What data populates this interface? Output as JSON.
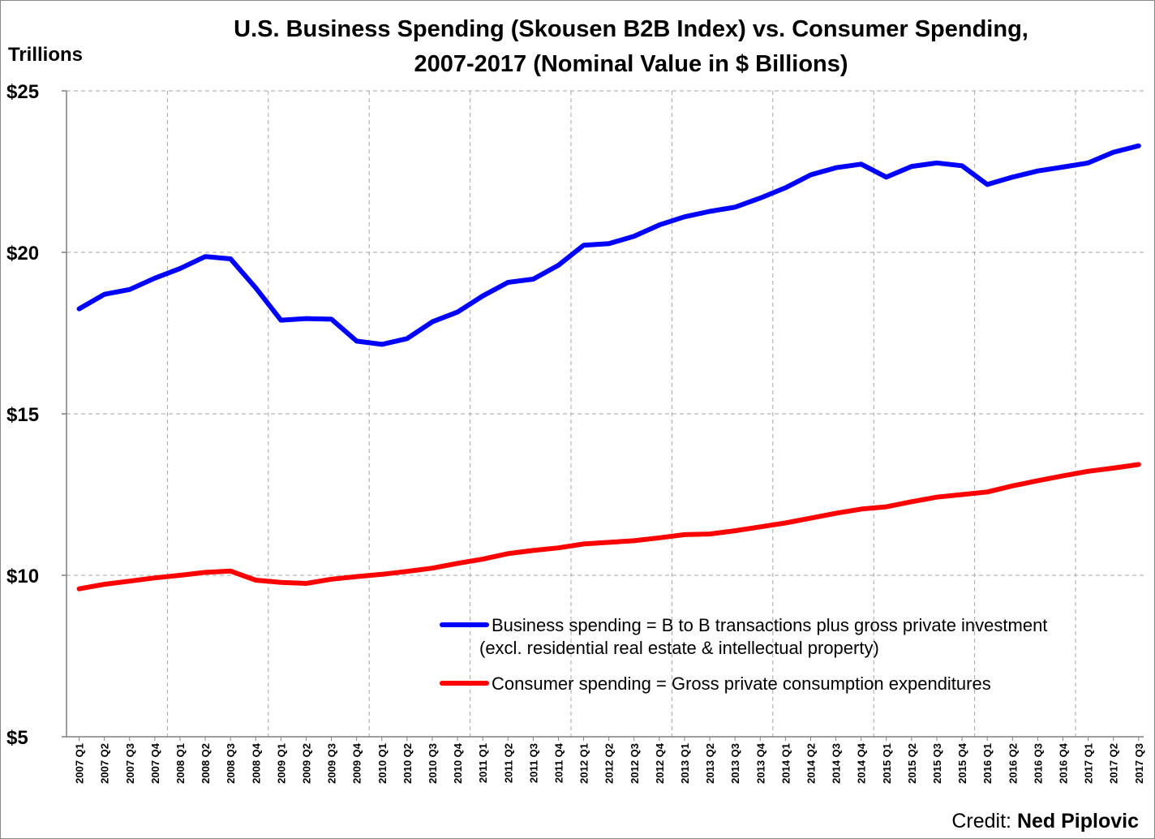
{
  "chart_data": {
    "type": "line",
    "title_line1": "U.S. Business Spending (Skousen B2B Index) vs. Consumer Spending,",
    "title_line2": "2007-2017  (Nominal Value in $ Billions)",
    "ylabel": "Trillions",
    "ylim": [
      5,
      25
    ],
    "yticks": [
      5,
      10,
      15,
      20,
      25
    ],
    "ytick_labels": [
      "$5",
      "$10",
      "$15",
      "$20",
      "$25"
    ],
    "grid": true,
    "legend_position": "bottom-right",
    "categories": [
      "2007 Q1",
      "2007 Q2",
      "2007 Q3",
      "2007 Q4",
      "2008 Q1",
      "2008 Q2",
      "2008 Q3",
      "2008 Q4",
      "2009 Q1",
      "2009 Q2",
      "2009 Q3",
      "2009 Q4",
      "2010 Q1",
      "2010 Q2",
      "2010 Q3",
      "2010 Q4",
      "2011 Q1",
      "2011 Q2",
      "2011 Q3",
      "2011 Q4",
      "2012 Q1",
      "2012 Q2",
      "2012 Q3",
      "2012 Q4",
      "2013 Q1",
      "2013 Q2",
      "2013 Q3",
      "2013 Q4",
      "2014 Q1",
      "2014 Q2",
      "2014 Q3",
      "2014 Q4",
      "2015 Q1",
      "2015 Q2",
      "2015 Q3",
      "2015 Q4",
      "2016 Q1",
      "2016 Q2",
      "2016 Q3",
      "2016 Q4",
      "2017 Q1",
      "2017 Q2",
      "2017 Q3"
    ],
    "series": [
      {
        "name_line1": "Business spending = B to B transactions plus gross private investment",
        "name_line2": "(excl. residential real estate & intellectual property)",
        "color": "#0000ff",
        "values": [
          18.25,
          18.7,
          18.85,
          19.2,
          19.5,
          19.87,
          19.8,
          18.9,
          17.9,
          17.95,
          17.93,
          17.25,
          17.15,
          17.33,
          17.85,
          18.15,
          18.65,
          19.07,
          19.17,
          19.6,
          20.22,
          20.27,
          20.5,
          20.85,
          21.1,
          21.27,
          21.4,
          21.68,
          22.0,
          22.4,
          22.62,
          22.73,
          22.33,
          22.66,
          22.77,
          22.68,
          22.1,
          22.33,
          22.52,
          22.64,
          22.77,
          23.1,
          23.3
        ]
      },
      {
        "name_line1": "Consumer spending = Gross private consumption expenditures",
        "color": "#ff0000",
        "values": [
          9.58,
          9.72,
          9.82,
          9.92,
          10.0,
          10.09,
          10.13,
          9.85,
          9.78,
          9.75,
          9.88,
          9.96,
          10.03,
          10.12,
          10.22,
          10.37,
          10.5,
          10.67,
          10.77,
          10.85,
          10.97,
          11.02,
          11.07,
          11.16,
          11.26,
          11.28,
          11.38,
          11.5,
          11.62,
          11.77,
          11.92,
          12.05,
          12.12,
          12.28,
          12.42,
          12.5,
          12.58,
          12.77,
          12.93,
          13.08,
          13.22,
          13.32,
          13.43
        ]
      }
    ]
  },
  "credit": {
    "label": "Credit: ",
    "name": "Ned Piplovic"
  }
}
